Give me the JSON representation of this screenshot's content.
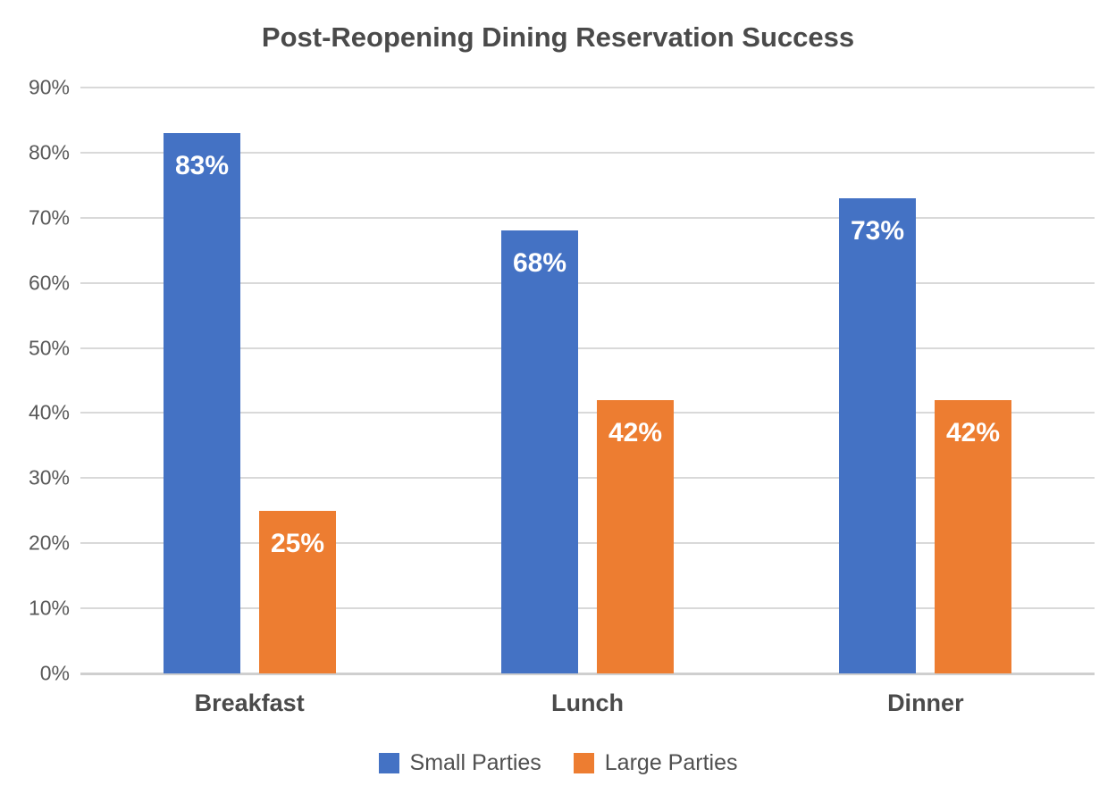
{
  "chart_data": {
    "type": "bar",
    "title": "Post-Reopening Dining Reservation Success",
    "categories": [
      "Breakfast",
      "Lunch",
      "Dinner"
    ],
    "series": [
      {
        "name": "Small Parties",
        "color": "#4472C4",
        "values": [
          83,
          68,
          73
        ]
      },
      {
        "name": "Large Parties",
        "color": "#ED7D31",
        "values": [
          25,
          42,
          42
        ]
      }
    ],
    "data_labels": [
      "83%",
      "25%",
      "68%",
      "42%",
      "73%",
      "42%"
    ],
    "value_suffix": "%",
    "y_ticks": [
      "90%",
      "80%",
      "70%",
      "60%",
      "50%",
      "40%",
      "30%",
      "20%",
      "10%",
      "0%"
    ],
    "ylim": [
      0,
      90
    ],
    "xlabel": "",
    "ylabel": "",
    "grid": true,
    "legend_position": "bottom",
    "data_label_style": "inside-top-white-bold"
  },
  "colors": {
    "series_small_parties": "#4472C4",
    "series_large_parties": "#ED7D31",
    "gridline": "#d9d9d9",
    "axis_line": "#cfcfcf",
    "title_text": "#4a4a4a",
    "tick_text": "#595959",
    "category_text": "#4a4a4a",
    "legend_text": "#4f4f4f",
    "data_label_text": "#ffffff",
    "background": "#ffffff"
  }
}
